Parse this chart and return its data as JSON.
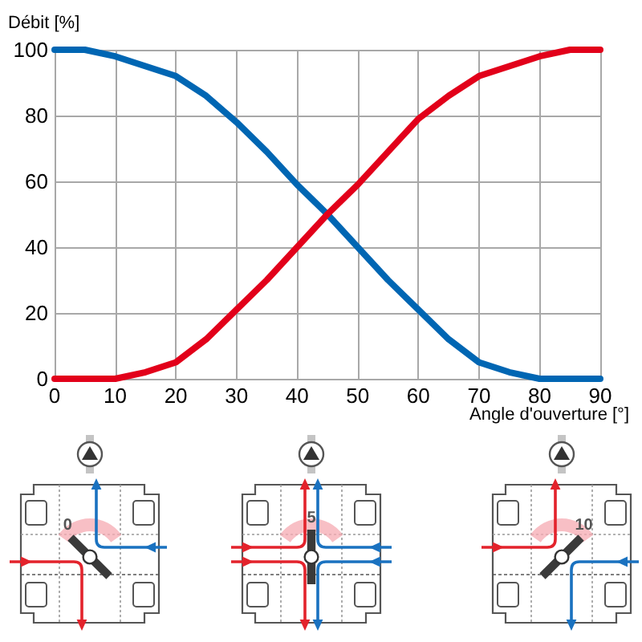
{
  "chart_data": {
    "type": "line",
    "xlabel": "Angle d'ouverture [°]",
    "ylabel": "Débit [%]",
    "x": [
      0,
      5,
      10,
      15,
      20,
      25,
      30,
      35,
      40,
      45,
      50,
      55,
      60,
      65,
      70,
      75,
      80,
      85,
      90
    ],
    "series": [
      {
        "color": "#0066b3",
        "values": [
          100,
          100,
          98,
          95,
          92,
          86,
          78,
          69,
          59,
          50,
          40,
          30,
          21,
          12,
          5,
          2,
          0,
          0,
          0
        ]
      },
      {
        "color": "#e2001a",
        "values": [
          0,
          0,
          0,
          2,
          5,
          12,
          21,
          30,
          40,
          50,
          59,
          69,
          79,
          86,
          92,
          95,
          98,
          100,
          100
        ]
      }
    ],
    "xlim": [
      0,
      90
    ],
    "xticks": [
      0,
      10,
      20,
      30,
      40,
      50,
      60,
      70,
      80,
      90
    ],
    "ylim": [
      0,
      100
    ],
    "yticks": [
      0,
      20,
      40,
      60,
      80,
      100
    ],
    "grid": true,
    "marker": "none",
    "line_style": "solid",
    "annotations": [
      "0",
      "5",
      "10"
    ]
  }
}
